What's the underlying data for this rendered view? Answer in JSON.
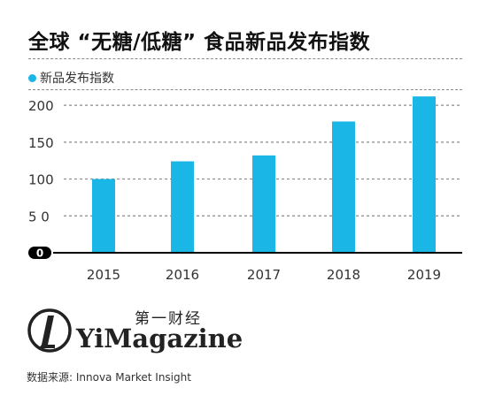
{
  "title": "全球 “无糖/低糖” 食品新品发布指数",
  "colors": {
    "bar": "#19b6e6",
    "grid": "#8a8a8a",
    "axis": "#000000"
  },
  "chart_data": {
    "type": "bar",
    "categories": [
      "2015",
      "2016",
      "2017",
      "2018",
      "2019"
    ],
    "series": [
      {
        "name": "新品发布指数",
        "values": [
          100,
          124,
          132,
          178,
          212
        ]
      }
    ],
    "yticks": [
      "0",
      "5 0",
      "100",
      "150",
      "200"
    ],
    "ytick_values": [
      0,
      50,
      100,
      150,
      200
    ],
    "ylim": [
      0,
      215
    ],
    "grid": true,
    "legend": "top-left"
  },
  "logo": {
    "cn": "第一财经",
    "en": "YiMagazine"
  },
  "source": "数据来源: Innova Market Insight"
}
